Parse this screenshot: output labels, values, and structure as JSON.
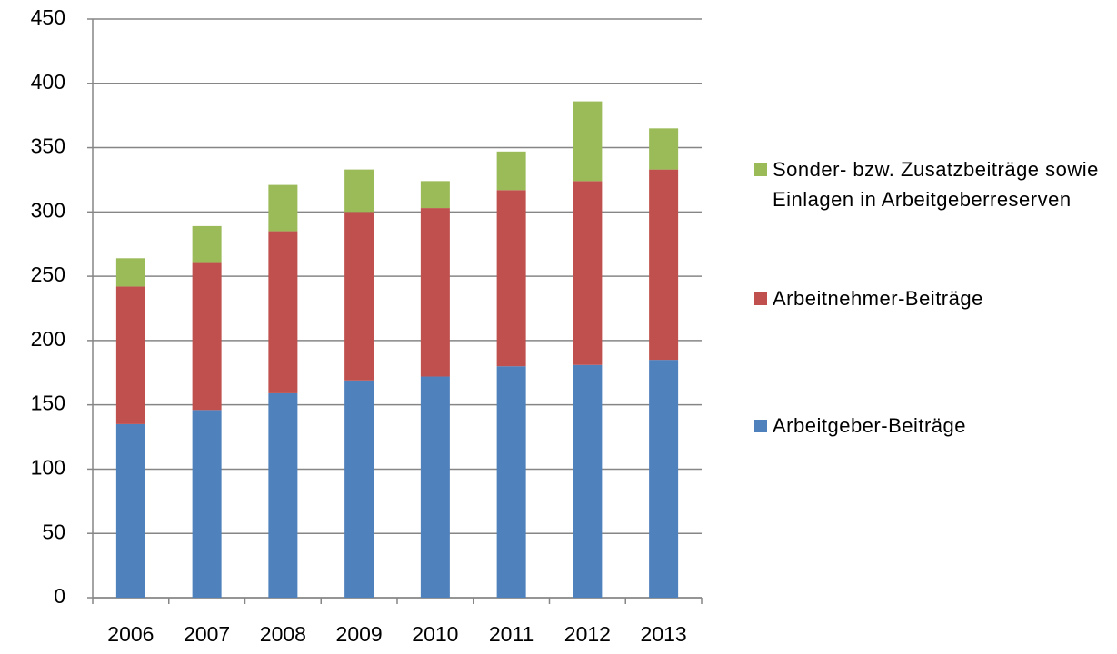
{
  "chart_data": {
    "type": "stacked_bar",
    "categories": [
      "2006",
      "2007",
      "2008",
      "2009",
      "2010",
      "2011",
      "2012",
      "2013"
    ],
    "series": [
      {
        "name": "Arbeitgeber-Beiträge",
        "color": "#4f81bd",
        "values": [
          135,
          146,
          159,
          169,
          172,
          180,
          181,
          185
        ]
      },
      {
        "name": "Arbeitnehmer-Beiträge",
        "color": "#c0504d",
        "values": [
          107,
          115,
          126,
          131,
          131,
          137,
          143,
          148
        ]
      },
      {
        "name": "Sonder- bzw. Zusatzbeiträge sowie Einlagen in Arbeitgeberreserven",
        "color": "#9bbb59",
        "values": [
          22,
          28,
          36,
          33,
          21,
          30,
          62,
          32
        ]
      }
    ],
    "ylim": [
      0,
      450
    ],
    "yticks": [
      0,
      50,
      100,
      150,
      200,
      250,
      300,
      350,
      400,
      450
    ],
    "grid": true,
    "legend": "right"
  }
}
